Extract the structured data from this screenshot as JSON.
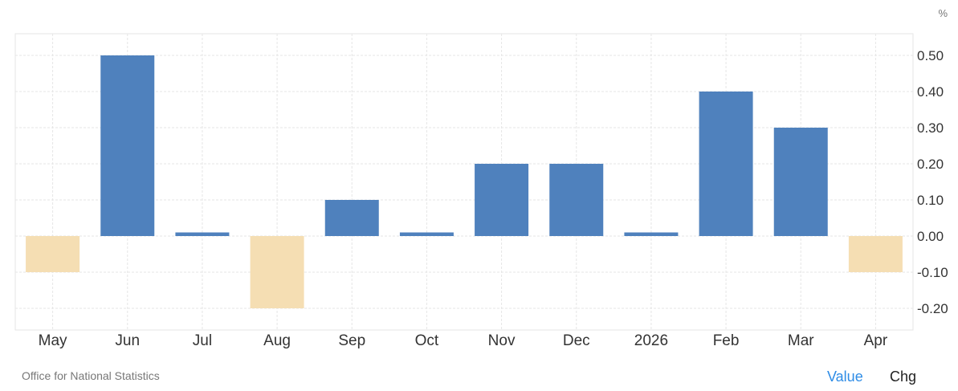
{
  "chart_data": {
    "type": "bar",
    "unit": "%",
    "categories": [
      "May",
      "Jun",
      "Jul",
      "Aug",
      "Sep",
      "Oct",
      "Nov",
      "Dec",
      "2026",
      "Feb",
      "Mar",
      "Apr"
    ],
    "values": [
      -0.1,
      0.5,
      0.01,
      -0.2,
      0.1,
      0.01,
      0.2,
      0.2,
      0.01,
      0.4,
      0.3,
      -0.1
    ],
    "yticks": [
      "0.50",
      "0.40",
      "0.30",
      "0.20",
      "0.10",
      "0.00",
      "-0.10",
      "-0.20"
    ],
    "ylim": [
      -0.26,
      0.56
    ],
    "y_axis_side": "right",
    "grid": true,
    "colors": {
      "positive": "#4f81bd",
      "negative": "#f5deb3",
      "grid": "#e6e6e6"
    }
  },
  "footer": {
    "source": "Office for National Statistics",
    "value_label": "Value",
    "chg_label": "Chg"
  }
}
